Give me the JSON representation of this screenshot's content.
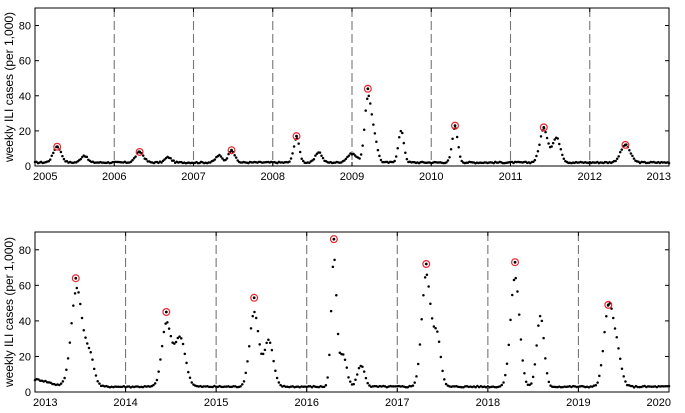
{
  "colors": {
    "peak_marker": "#e8262c",
    "series": "#000000",
    "divider": "#777777"
  },
  "chart_data": [
    {
      "type": "scatter",
      "ylabel": "weekly ILI cases (per 1,000)",
      "xlim": [
        2005,
        2013
      ],
      "ylim": [
        0,
        90
      ],
      "x_ticks": [
        "2005",
        "2006",
        "2007",
        "2008",
        "2009",
        "2010",
        "2011",
        "2012",
        "2013"
      ],
      "y_ticks": [
        "0",
        "20",
        "40",
        "60",
        "80"
      ],
      "season_dividers": [
        2006,
        2007,
        2008,
        2009,
        2010,
        2011,
        2012
      ],
      "peaks": [
        {
          "x": 2005.28,
          "y": 11
        },
        {
          "x": 2006.32,
          "y": 8
        },
        {
          "x": 2007.48,
          "y": 9
        },
        {
          "x": 2008.3,
          "y": 17
        },
        {
          "x": 2009.2,
          "y": 44
        },
        {
          "x": 2010.3,
          "y": 23
        },
        {
          "x": 2011.42,
          "y": 22
        },
        {
          "x": 2012.45,
          "y": 12
        }
      ],
      "baseline": 2,
      "bumps": [
        {
          "c": 2005.28,
          "h": 9,
          "w": 0.05
        },
        {
          "c": 2005.62,
          "h": 4,
          "w": 0.04
        },
        {
          "c": 2006.32,
          "h": 6,
          "w": 0.05
        },
        {
          "c": 2006.68,
          "h": 3,
          "w": 0.04
        },
        {
          "c": 2007.32,
          "h": 4,
          "w": 0.04
        },
        {
          "c": 2007.48,
          "h": 7,
          "w": 0.04
        },
        {
          "c": 2008.3,
          "h": 14,
          "w": 0.035
        },
        {
          "c": 2008.58,
          "h": 6,
          "w": 0.04
        },
        {
          "c": 2009.0,
          "h": 5,
          "w": 0.06
        },
        {
          "c": 2009.2,
          "h": 36,
          "w": 0.04
        },
        {
          "c": 2009.28,
          "h": 14,
          "w": 0.04
        },
        {
          "c": 2009.62,
          "h": 18,
          "w": 0.035
        },
        {
          "c": 2010.3,
          "h": 20,
          "w": 0.035
        },
        {
          "c": 2011.42,
          "h": 19,
          "w": 0.05
        },
        {
          "c": 2011.58,
          "h": 14,
          "w": 0.05
        },
        {
          "c": 2012.45,
          "h": 10,
          "w": 0.06
        }
      ]
    },
    {
      "type": "scatter",
      "ylabel": "weekly ILI cases (per 1,000)",
      "xlim": [
        2013,
        2020
      ],
      "ylim": [
        0,
        90
      ],
      "x_ticks": [
        "2013",
        "2014",
        "2015",
        "2016",
        "2017",
        "2018",
        "2019",
        "2020"
      ],
      "y_ticks": [
        "0",
        "20",
        "40",
        "60",
        "80"
      ],
      "season_dividers": [
        2014,
        2015,
        2016,
        2017,
        2018,
        2019
      ],
      "peaks": [
        {
          "x": 2013.45,
          "y": 64
        },
        {
          "x": 2014.45,
          "y": 45
        },
        {
          "x": 2015.42,
          "y": 53
        },
        {
          "x": 2016.3,
          "y": 86
        },
        {
          "x": 2017.32,
          "y": 72
        },
        {
          "x": 2018.3,
          "y": 73
        },
        {
          "x": 2019.33,
          "y": 49
        }
      ],
      "baseline": 3,
      "bumps": [
        {
          "c": 2013.0,
          "h": 4,
          "w": 0.15
        },
        {
          "c": 2013.46,
          "h": 55,
          "w": 0.06
        },
        {
          "c": 2013.6,
          "h": 18,
          "w": 0.05
        },
        {
          "c": 2014.45,
          "h": 35,
          "w": 0.05
        },
        {
          "c": 2014.6,
          "h": 28,
          "w": 0.06
        },
        {
          "c": 2015.42,
          "h": 42,
          "w": 0.05
        },
        {
          "c": 2015.58,
          "h": 26,
          "w": 0.05
        },
        {
          "c": 2016.3,
          "h": 72,
          "w": 0.03
        },
        {
          "c": 2016.4,
          "h": 18,
          "w": 0.04
        },
        {
          "c": 2016.6,
          "h": 12,
          "w": 0.04
        },
        {
          "c": 2017.32,
          "h": 63,
          "w": 0.05
        },
        {
          "c": 2017.44,
          "h": 28,
          "w": 0.04
        },
        {
          "c": 2018.3,
          "h": 62,
          "w": 0.05
        },
        {
          "c": 2018.58,
          "h": 40,
          "w": 0.04
        },
        {
          "c": 2019.33,
          "h": 42,
          "w": 0.05
        },
        {
          "c": 2019.42,
          "h": 20,
          "w": 0.05
        }
      ]
    }
  ]
}
